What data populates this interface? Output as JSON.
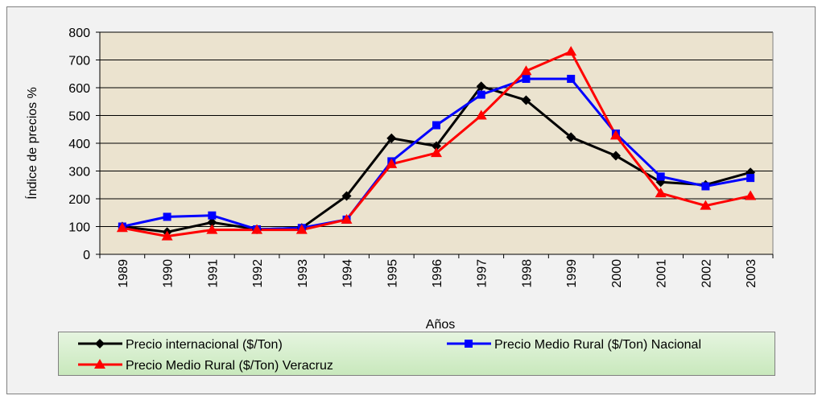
{
  "chart_data": {
    "type": "line",
    "y_label": "Índice de precios %",
    "x_label": "Años",
    "categories": [
      "1989",
      "1990",
      "1991",
      "1992",
      "1993",
      "1994",
      "1995",
      "1996",
      "1997",
      "1998",
      "1999",
      "2000",
      "2001",
      "2002",
      "2003"
    ],
    "series": [
      {
        "name": "Precio internacional ($/Ton)",
        "color": "#000000",
        "marker": "diamond",
        "values": [
          100,
          80,
          115,
          90,
          95,
          210,
          418,
          390,
          605,
          555,
          422,
          355,
          260,
          250,
          295
        ]
      },
      {
        "name": "Precio Medio Rural ($/Ton) Nacional",
        "color": "#0000ff",
        "marker": "square",
        "values": [
          100,
          135,
          140,
          90,
          95,
          125,
          335,
          465,
          575,
          632,
          632,
          435,
          280,
          245,
          275
        ]
      },
      {
        "name": "Precio Medio Rural ($/Ton) Veracruz",
        "color": "#ff0000",
        "marker": "triangle",
        "values": [
          95,
          65,
          88,
          88,
          88,
          125,
          325,
          365,
          500,
          660,
          730,
          428,
          220,
          175,
          210
        ]
      }
    ],
    "ylim": [
      0,
      800
    ],
    "yticks": [
      0,
      100,
      200,
      300,
      400,
      500,
      600,
      700,
      800
    ],
    "grid": true,
    "legend": "bottom"
  }
}
